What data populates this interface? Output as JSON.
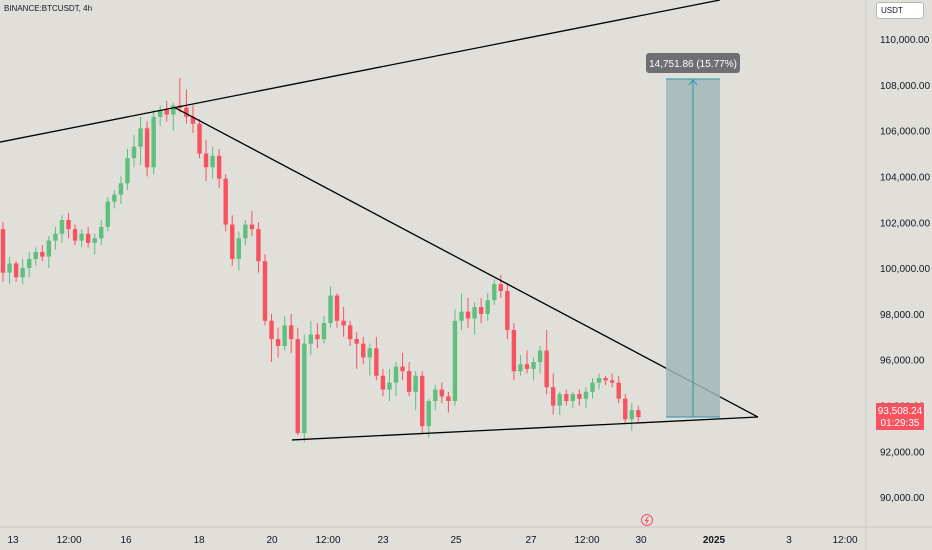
{
  "header": {
    "symbol": "BINANCE:BTCUSDT, 4h",
    "currency": "USDT"
  },
  "price_tag": {
    "price": "93,508.24",
    "countdown": "01:29:35",
    "color": "#f7525f"
  },
  "measure": {
    "label": "14,751.86 (15.77%)",
    "fill": "#9fb9b7",
    "stroke": "#2a97a8"
  },
  "colors": {
    "up": "#5fbf7e",
    "down": "#f7525f",
    "background": "#e0dfda",
    "trendline": "#000000"
  },
  "chart_data": {
    "type": "candlestick",
    "yticks": [
      90000,
      92000,
      94000,
      96000,
      98000,
      100000,
      102000,
      104000,
      106000,
      108000,
      110000
    ],
    "ytick_labels": [
      "90,000.00",
      "92,000.00",
      "94,000.00",
      "96,000.00",
      "98,000.00",
      "100,000.00",
      "102,000.00",
      "104,000.00",
      "106,000.00",
      "108,000.00",
      "110,000.00"
    ],
    "ylim": [
      88700,
      111700
    ],
    "xticks": [
      {
        "label": "13",
        "bold": false
      },
      {
        "label": "12:00",
        "bold": false
      },
      {
        "label": "16",
        "bold": false
      },
      {
        "label": "18",
        "bold": false
      },
      {
        "label": "20",
        "bold": false
      },
      {
        "label": "12:00",
        "bold": false
      },
      {
        "label": "23",
        "bold": false
      },
      {
        "label": "25",
        "bold": false
      },
      {
        "label": "27",
        "bold": false
      },
      {
        "label": "12:00",
        "bold": false
      },
      {
        "label": "30",
        "bold": false
      },
      {
        "label": "2025",
        "bold": true
      },
      {
        "label": "3",
        "bold": false
      },
      {
        "label": "12:00",
        "bold": false
      }
    ],
    "candles": [
      [
        101700,
        102000,
        99400,
        99800
      ],
      [
        99800,
        100500,
        99300,
        100200
      ],
      [
        100200,
        100300,
        99400,
        99600
      ],
      [
        99600,
        100400,
        99300,
        100000
      ],
      [
        100000,
        100700,
        99600,
        100400
      ],
      [
        100400,
        100900,
        100100,
        100700
      ],
      [
        100700,
        101000,
        100300,
        100500
      ],
      [
        100500,
        101400,
        100000,
        101200
      ],
      [
        101200,
        101800,
        100800,
        101500
      ],
      [
        101500,
        102300,
        101100,
        102100
      ],
      [
        102100,
        102400,
        101300,
        101700
      ],
      [
        101700,
        101900,
        101000,
        101200
      ],
      [
        101200,
        101700,
        100900,
        101500
      ],
      [
        101500,
        101800,
        100900,
        101100
      ],
      [
        101100,
        101500,
        100600,
        101300
      ],
      [
        101300,
        102100,
        101000,
        101800
      ],
      [
        101800,
        103100,
        101600,
        102900
      ],
      [
        102900,
        103400,
        102600,
        103200
      ],
      [
        103200,
        104000,
        102800,
        103700
      ],
      [
        103700,
        105200,
        103400,
        104800
      ],
      [
        104800,
        105800,
        104400,
        105300
      ],
      [
        105300,
        106600,
        104500,
        106100
      ],
      [
        106100,
        106400,
        104000,
        104400
      ],
      [
        104400,
        106900,
        104100,
        106600
      ],
      [
        106600,
        107100,
        106200,
        106900
      ],
      [
        106900,
        107300,
        106400,
        106700
      ],
      [
        106700,
        107200,
        106000,
        107100
      ],
      [
        107100,
        108300,
        106800,
        107000
      ],
      [
        107000,
        107800,
        106300,
        106600
      ],
      [
        106600,
        107100,
        105900,
        106300
      ],
      [
        106300,
        106500,
        104800,
        105000
      ],
      [
        105000,
        105600,
        103800,
        104400
      ],
      [
        104400,
        105300,
        103900,
        104900
      ],
      [
        104900,
        105200,
        103500,
        103900
      ],
      [
        103900,
        104100,
        101600,
        101900
      ],
      [
        101900,
        102300,
        100100,
        100400
      ],
      [
        100400,
        101600,
        99900,
        101300
      ],
      [
        101300,
        102100,
        101000,
        101900
      ],
      [
        101900,
        102500,
        101400,
        101700
      ],
      [
        101700,
        102000,
        99800,
        100300
      ],
      [
        100300,
        100600,
        97500,
        97700
      ],
      [
        97700,
        98000,
        95900,
        96900
      ],
      [
        96900,
        97400,
        96100,
        96600
      ],
      [
        96600,
        97900,
        96400,
        97500
      ],
      [
        97500,
        98000,
        96300,
        96900
      ],
      [
        96900,
        97400,
        92700,
        92800
      ],
      [
        92800,
        97100,
        92400,
        96700
      ],
      [
        96700,
        97700,
        96200,
        97100
      ],
      [
        97100,
        97600,
        96500,
        96900
      ],
      [
        96900,
        97900,
        96700,
        97600
      ],
      [
        97600,
        99200,
        97400,
        98800
      ],
      [
        98800,
        98900,
        97400,
        97700
      ],
      [
        97700,
        98300,
        97000,
        97500
      ],
      [
        97500,
        97700,
        96600,
        96900
      ],
      [
        96900,
        97200,
        95600,
        96700
      ],
      [
        96700,
        97000,
        95800,
        96100
      ],
      [
        96100,
        96700,
        95300,
        96500
      ],
      [
        96500,
        97000,
        95100,
        95300
      ],
      [
        95300,
        95600,
        94400,
        94700
      ],
      [
        94700,
        95600,
        94200,
        95000
      ],
      [
        95000,
        95900,
        94400,
        95700
      ],
      [
        95700,
        96300,
        95100,
        95500
      ],
      [
        95500,
        95900,
        94400,
        94600
      ],
      [
        94600,
        95500,
        93800,
        95300
      ],
      [
        95300,
        95500,
        92800,
        93100
      ],
      [
        93100,
        94300,
        92600,
        94200
      ],
      [
        94200,
        94900,
        93800,
        94700
      ],
      [
        94700,
        95000,
        94100,
        94400
      ],
      [
        94400,
        94600,
        93700,
        94200
      ],
      [
        94200,
        98200,
        94000,
        97700
      ],
      [
        97700,
        98900,
        97300,
        98100
      ],
      [
        98100,
        98700,
        97400,
        97800
      ],
      [
        97800,
        98500,
        97100,
        98300
      ],
      [
        98300,
        98700,
        97600,
        98000
      ],
      [
        98000,
        98900,
        97700,
        98600
      ],
      [
        98600,
        99500,
        98400,
        99300
      ],
      [
        99300,
        99700,
        98700,
        99000
      ],
      [
        99000,
        99300,
        96900,
        97300
      ],
      [
        97300,
        97600,
        95100,
        95500
      ],
      [
        95500,
        96200,
        95300,
        95800
      ],
      [
        95800,
        96400,
        95400,
        95600
      ],
      [
        95600,
        96100,
        95100,
        95900
      ],
      [
        95900,
        96600,
        95400,
        96400
      ],
      [
        96400,
        97300,
        94500,
        94800
      ],
      [
        94800,
        95400,
        93600,
        94000
      ],
      [
        94000,
        94600,
        93600,
        94500
      ],
      [
        94500,
        94700,
        94000,
        94200
      ],
      [
        94200,
        94600,
        93900,
        94500
      ],
      [
        94500,
        94700,
        94000,
        94300
      ],
      [
        94300,
        94800,
        93900,
        94600
      ],
      [
        94600,
        95200,
        94300,
        95000
      ],
      [
        95000,
        95400,
        94700,
        95200
      ],
      [
        95200,
        95300,
        94900,
        95100
      ],
      [
        95100,
        95400,
        94800,
        95000
      ],
      [
        95000,
        95300,
        94100,
        94300
      ],
      [
        94300,
        94500,
        93200,
        93400
      ],
      [
        93400,
        94100,
        92900,
        93800
      ],
      [
        93800,
        94000,
        93300,
        93500
      ]
    ],
    "trendlines": [
      {
        "x1": 0,
        "y1": 105500,
        "x2": 720,
        "y2": 111700
      },
      {
        "x1": 175,
        "y1": 107000,
        "x2": 758,
        "y2": 93500
      },
      {
        "x1": 292,
        "y1": 92500,
        "x2": 758,
        "y2": 93500
      }
    ],
    "measure_range": {
      "from": 93500,
      "to": 108251.86
    }
  }
}
